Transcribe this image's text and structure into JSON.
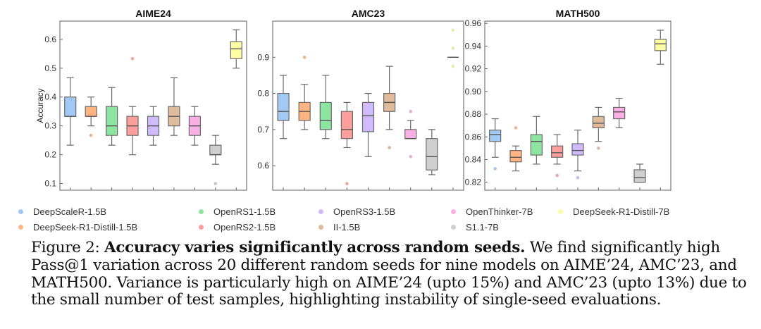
{
  "chart_data": [
    {
      "type": "box",
      "title": "AIME24",
      "ylabel": "Accuracy",
      "ylim": [
        0.077,
        0.663
      ],
      "yticks": [
        "0.1",
        "0.2",
        "0.3",
        "0.4",
        "0.5",
        "0.6"
      ],
      "boxes": [
        {
          "model": "DeepScaleR-1.5B",
          "min": 0.233,
          "q1": 0.333,
          "median": 0.333,
          "q3": 0.4,
          "max": 0.467,
          "outliers": []
        },
        {
          "model": "DeepSeek-R1-Distill-1.5B",
          "min": 0.3,
          "q1": 0.333,
          "median": 0.333,
          "q3": 0.367,
          "max": 0.4,
          "outliers": [
            0.267
          ]
        },
        {
          "model": "OpenRS1-1.5B",
          "min": 0.233,
          "q1": 0.267,
          "median": 0.3,
          "q3": 0.367,
          "max": 0.433,
          "outliers": []
        },
        {
          "model": "OpenRS2-1.5B",
          "min": 0.2,
          "q1": 0.267,
          "median": 0.3,
          "q3": 0.333,
          "max": 0.367,
          "outliers": [
            0.533
          ]
        },
        {
          "model": "OpenRS3-1.5B",
          "min": 0.233,
          "q1": 0.267,
          "median": 0.3,
          "q3": 0.333,
          "max": 0.367,
          "outliers": []
        },
        {
          "model": "II-1.5B",
          "min": 0.267,
          "q1": 0.3,
          "median": 0.333,
          "q3": 0.367,
          "max": 0.467,
          "outliers": []
        },
        {
          "model": "OpenThinker-7B",
          "min": 0.233,
          "q1": 0.267,
          "median": 0.3,
          "q3": 0.333,
          "max": 0.367,
          "outliers": []
        },
        {
          "model": "S1.1-7B",
          "min": 0.167,
          "q1": 0.2,
          "median": 0.2,
          "q3": 0.233,
          "max": 0.267,
          "outliers": [
            0.1
          ]
        },
        {
          "model": "DeepSeek-R1-Distill-7B",
          "min": 0.5,
          "q1": 0.533,
          "median": 0.567,
          "q3": 0.592,
          "max": 0.633,
          "outliers": []
        }
      ]
    },
    {
      "type": "box",
      "title": "AMC23",
      "ylabel": "",
      "ylim": [
        0.532,
        1.0
      ],
      "yticks": [
        "0.6",
        "0.7",
        "0.8",
        "0.9"
      ],
      "boxes": [
        {
          "model": "DeepScaleR-1.5B",
          "min": 0.675,
          "q1": 0.725,
          "median": 0.75,
          "q3": 0.8,
          "max": 0.85,
          "outliers": []
        },
        {
          "model": "DeepSeek-R1-Distill-1.5B",
          "min": 0.7,
          "q1": 0.725,
          "median": 0.75,
          "q3": 0.775,
          "max": 0.825,
          "outliers": [
            0.9
          ]
        },
        {
          "model": "OpenRS1-1.5B",
          "min": 0.675,
          "q1": 0.7,
          "median": 0.725,
          "q3": 0.775,
          "max": 0.85,
          "outliers": []
        },
        {
          "model": "OpenRS2-1.5B",
          "min": 0.65,
          "q1": 0.675,
          "median": 0.7,
          "q3": 0.75,
          "max": 0.775,
          "outliers": [
            0.55
          ]
        },
        {
          "model": "OpenRS3-1.5B",
          "min": 0.625,
          "q1": 0.694,
          "median": 0.738,
          "q3": 0.775,
          "max": 0.8,
          "outliers": []
        },
        {
          "model": "II-1.5B",
          "min": 0.7,
          "q1": 0.75,
          "median": 0.775,
          "q3": 0.8,
          "max": 0.875,
          "outliers": [
            0.65
          ]
        },
        {
          "model": "OpenThinker-7B",
          "min": 0.675,
          "q1": 0.675,
          "median": 0.675,
          "q3": 0.7,
          "max": 0.725,
          "outliers": [
            0.625,
            0.75
          ]
        },
        {
          "model": "S1.1-7B",
          "min": 0.575,
          "q1": 0.588,
          "median": 0.625,
          "q3": 0.675,
          "max": 0.7,
          "outliers": []
        },
        {
          "model": "DeepSeek-R1-Distill-7B",
          "min": 0.9,
          "q1": 0.9,
          "median": 0.9,
          "q3": 0.9,
          "max": 0.9,
          "outliers": [
            0.875,
            0.925,
            0.975
          ]
        }
      ]
    },
    {
      "type": "box",
      "title": "MATH500",
      "ylabel": "",
      "ylim": [
        0.813,
        0.962
      ],
      "yticks": [
        "0.82",
        "0.84",
        "0.86",
        "0.88",
        "0.90",
        "0.92",
        "0.94",
        "0.96"
      ],
      "boxes": [
        {
          "model": "DeepScaleR-1.5B",
          "min": 0.842,
          "q1": 0.856,
          "median": 0.862,
          "q3": 0.866,
          "max": 0.876,
          "outliers": [
            0.832
          ]
        },
        {
          "model": "DeepSeek-R1-Distill-1.5B",
          "min": 0.83,
          "q1": 0.838,
          "median": 0.842,
          "q3": 0.848,
          "max": 0.852,
          "outliers": [
            0.868
          ]
        },
        {
          "model": "OpenRS1-1.5B",
          "min": 0.836,
          "q1": 0.844,
          "median": 0.856,
          "q3": 0.862,
          "max": 0.878,
          "outliers": []
        },
        {
          "model": "OpenRS2-1.5B",
          "min": 0.836,
          "q1": 0.842,
          "median": 0.846,
          "q3": 0.852,
          "max": 0.862,
          "outliers": [
            0.826
          ]
        },
        {
          "model": "OpenRS3-1.5B",
          "min": 0.83,
          "q1": 0.844,
          "median": 0.848,
          "q3": 0.854,
          "max": 0.866,
          "outliers": [
            0.824
          ]
        },
        {
          "model": "II-1.5B",
          "min": 0.856,
          "q1": 0.868,
          "median": 0.872,
          "q3": 0.878,
          "max": 0.886,
          "outliers": [
            0.85
          ]
        },
        {
          "model": "OpenThinker-7B",
          "min": 0.868,
          "q1": 0.876,
          "median": 0.882,
          "q3": 0.886,
          "max": 0.894,
          "outliers": []
        },
        {
          "model": "S1.1-7B",
          "min": 0.82,
          "q1": 0.82,
          "median": 0.824,
          "q3": 0.831,
          "max": 0.836,
          "outliers": []
        },
        {
          "model": "DeepSeek-R1-Distill-7B",
          "min": 0.924,
          "q1": 0.936,
          "median": 0.942,
          "q3": 0.946,
          "max": 0.954,
          "outliers": []
        }
      ]
    }
  ],
  "colors": {
    "DeepScaleR-1.5B": "#a1c9f4",
    "DeepSeek-R1-Distill-1.5B": "#ffb482",
    "OpenRS1-1.5B": "#8de5a1",
    "OpenRS2-1.5B": "#ff9f9b",
    "OpenRS3-1.5B": "#d0bbff",
    "II-1.5B": "#debb9b",
    "OpenThinker-7B": "#fab0e4",
    "S1.1-7B": "#cfcfcf",
    "DeepSeek-R1-Distill-7B": "#fffea3"
  },
  "legend": [
    {
      "label": "DeepScaleR-1.5B"
    },
    {
      "label": "OpenRS1-1.5B"
    },
    {
      "label": "OpenRS3-1.5B"
    },
    {
      "label": "OpenThinker-7B"
    },
    {
      "label": "DeepSeek-R1-Distill-7B"
    },
    {
      "label": "DeepSeek-R1-Distill-1.5B"
    },
    {
      "label": "OpenRS2-1.5B"
    },
    {
      "label": "II-1.5B"
    },
    {
      "label": "S1.1-7B"
    }
  ],
  "caption": {
    "prefix": "Figure 2: ",
    "bold": "Accuracy varies significantly across random seeds.",
    "text": " We find significantly high Pass@1 variation across 20 different random seeds for nine models on AIME’24, AMC’23, and MATH500. Variance is particularly high on AIME’24 (upto 15%) and AMC’23 (upto 13%) due to the small number of test samples, highlighting instability of single-seed evaluations."
  }
}
